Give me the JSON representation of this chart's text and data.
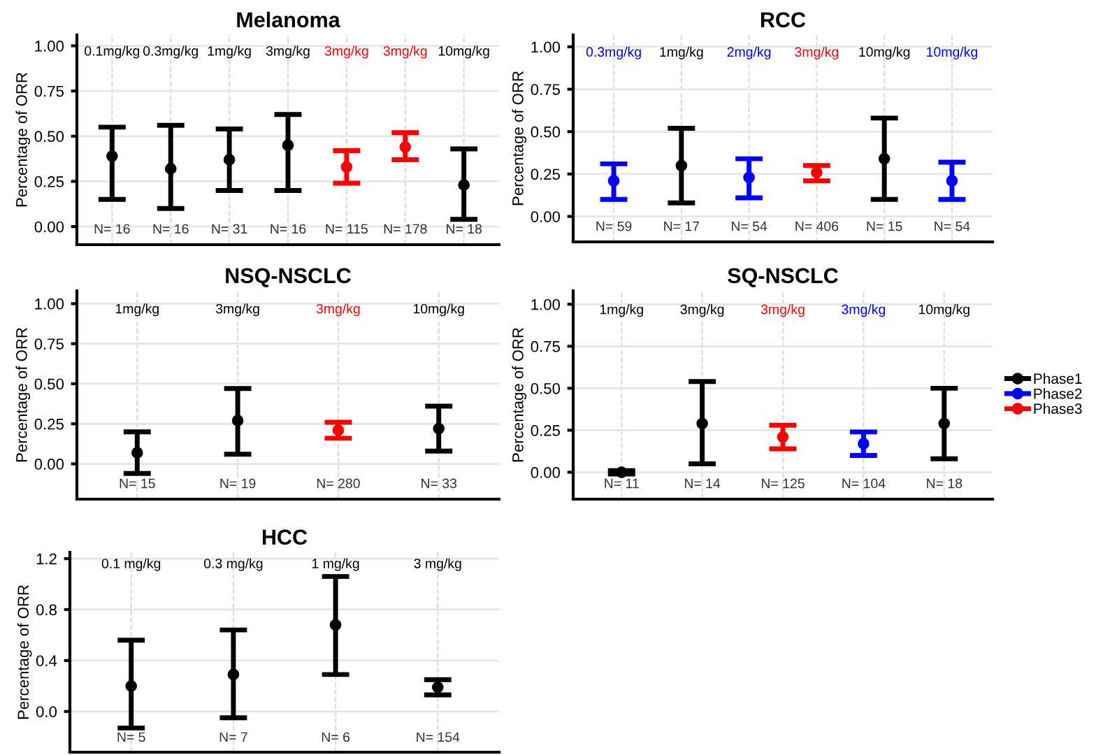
{
  "chart_data": [
    {
      "type": "scatter",
      "title": "Melanoma",
      "ylabel": "Percentage of ORR",
      "categories": [
        "0.1mg/kg",
        "0.3mg/kg",
        "1mg/kg",
        "3mg/kg",
        "3mg/kg",
        "3mg/kg",
        "10mg/kg"
      ],
      "series": [
        {
          "color": "#000000",
          "values": [
            0.39,
            0.32,
            0.37,
            0.45,
            null,
            null,
            0.23
          ],
          "errors": [
            [
              0.15,
              0.55
            ],
            [
              0.1,
              0.56
            ],
            [
              0.2,
              0.54
            ],
            [
              0.2,
              0.62
            ],
            null,
            null,
            [
              0.04,
              0.43
            ]
          ]
        },
        {
          "color": "#ff0000",
          "values": [
            null,
            null,
            null,
            null,
            0.33,
            0.44,
            null
          ],
          "errors": [
            null,
            null,
            null,
            null,
            [
              0.24,
              0.42
            ],
            [
              0.37,
              0.52
            ],
            null
          ]
        }
      ],
      "ylim": [
        -0.1,
        1.06
      ],
      "yticks": [
        {
          "value": 0,
          "label": "0.00"
        },
        {
          "value": 0.25,
          "label": "0.25"
        },
        {
          "value": 0.5,
          "label": "0.50"
        },
        {
          "value": 0.75,
          "label": "0.75"
        },
        {
          "value": 1,
          "label": "1.00"
        }
      ],
      "grid": true,
      "marker": "circle",
      "tick_labels": "y",
      "annotations": [
        "N= 16",
        "N= 16",
        "N= 31",
        "N= 16",
        "N= 115",
        "N= 178",
        "N= 18"
      ]
    },
    {
      "type": "scatter",
      "title": "RCC",
      "ylabel": "Percentage of ORR",
      "categories": [
        "0.3mg/kg",
        "1mg/kg",
        "2mg/kg",
        "3mg/kg",
        "10mg/kg",
        "10mg/kg"
      ],
      "series": [
        {
          "color": "#000000",
          "values": [
            null,
            0.3,
            null,
            null,
            0.34,
            null
          ],
          "errors": [
            null,
            [
              0.08,
              0.52
            ],
            null,
            null,
            [
              0.1,
              0.58
            ],
            null
          ]
        },
        {
          "color": "#0000ff",
          "values": [
            0.21,
            null,
            0.23,
            null,
            null,
            0.21
          ],
          "errors": [
            [
              0.1,
              0.31
            ],
            null,
            [
              0.11,
              0.34
            ],
            null,
            null,
            [
              0.1,
              0.32
            ]
          ]
        },
        {
          "color": "#ff0000",
          "values": [
            null,
            null,
            null,
            0.26,
            null,
            null
          ],
          "errors": [
            null,
            null,
            null,
            [
              0.21,
              0.3
            ],
            null,
            null
          ]
        }
      ],
      "ylim": [
        -0.15,
        1.07
      ],
      "yticks": [
        {
          "value": 0,
          "label": "0.00"
        },
        {
          "value": 0.25,
          "label": "0.25"
        },
        {
          "value": 0.5,
          "label": "0.50"
        },
        {
          "value": 0.75,
          "label": "0.75"
        },
        {
          "value": 1,
          "label": "1.00"
        }
      ],
      "grid": true,
      "marker": "circle",
      "tick_labels": "y",
      "annotations": [
        "N= 59",
        "N= 17",
        "N= 54",
        "N= 406",
        "N= 15",
        "N= 54"
      ]
    },
    {
      "type": "scatter",
      "title": "NSQ-NSCLC",
      "ylabel": "Percentage of ORR",
      "categories": [
        "1mg/kg",
        "3mg/kg",
        "3mg/kg",
        "10mg/kg"
      ],
      "series": [
        {
          "color": "#000000",
          "values": [
            0.07,
            0.27,
            null,
            0.22
          ],
          "errors": [
            [
              -0.06,
              0.2
            ],
            [
              0.06,
              0.47
            ],
            null,
            [
              0.08,
              0.36
            ]
          ]
        },
        {
          "color": "#ff0000",
          "values": [
            null,
            null,
            0.21,
            null
          ],
          "errors": [
            null,
            null,
            [
              0.16,
              0.26
            ],
            null
          ]
        }
      ],
      "ylim": [
        -0.22,
        1.08
      ],
      "yticks": [
        {
          "value": 0,
          "label": "0.00"
        },
        {
          "value": 0.25,
          "label": "0.25"
        },
        {
          "value": 0.5,
          "label": "0.50"
        },
        {
          "value": 0.75,
          "label": "0.75"
        },
        {
          "value": 1,
          "label": "1.00"
        }
      ],
      "grid": true,
      "marker": "circle",
      "tick_labels": "y",
      "annotations": [
        "N= 15",
        "N= 19",
        "N= 280",
        "N= 33"
      ]
    },
    {
      "type": "scatter",
      "title": "SQ-NSCLC",
      "ylabel": "Percentage of ORR",
      "categories": [
        "1mg/kg",
        "3mg/kg",
        "3mg/kg",
        "3mg/kg",
        "10mg/kg"
      ],
      "series": [
        {
          "name": "Phase1",
          "color": "#000000",
          "values": [
            0.0,
            0.29,
            null,
            null,
            0.29
          ],
          "errors": [
            [
              -0.01,
              0.01
            ],
            [
              0.05,
              0.54
            ],
            null,
            null,
            [
              0.08,
              0.5
            ]
          ]
        },
        {
          "name": "Phase2",
          "color": "#0000ff",
          "values": [
            null,
            null,
            null,
            0.17,
            null
          ],
          "errors": [
            null,
            null,
            null,
            [
              0.1,
              0.24
            ],
            null
          ]
        },
        {
          "name": "Phase3",
          "color": "#ff0000",
          "values": [
            null,
            null,
            0.21,
            null,
            null
          ],
          "errors": [
            null,
            null,
            [
              0.14,
              0.28
            ],
            null,
            null
          ]
        }
      ],
      "ylim": [
        -0.16,
        1.08
      ],
      "yticks": [
        {
          "value": 0,
          "label": "0.00"
        },
        {
          "value": 0.25,
          "label": "0.25"
        },
        {
          "value": 0.5,
          "label": "0.50"
        },
        {
          "value": 0.75,
          "label": "0.75"
        },
        {
          "value": 1,
          "label": "1.00"
        }
      ],
      "grid": true,
      "marker": "circle",
      "tick_labels": "y",
      "legend": "right",
      "annotations": [
        "N= 11",
        "N= 14",
        "N= 125",
        "N= 104",
        "N= 18"
      ]
    },
    {
      "type": "scatter",
      "title": "HCC",
      "ylabel": "Percentage of ORR",
      "categories": [
        "0.1 mg/kg",
        "0.3 mg/kg",
        "1 mg/kg",
        "3 mg/kg"
      ],
      "series": [
        {
          "color": "#000000",
          "values": [
            0.2,
            0.29,
            0.68,
            0.19
          ],
          "errors": [
            [
              -0.13,
              0.56
            ],
            [
              -0.05,
              0.64
            ],
            [
              0.29,
              1.06
            ],
            [
              0.13,
              0.25
            ]
          ]
        }
      ],
      "ylim": [
        -0.32,
        1.25
      ],
      "yticks": [
        {
          "value": 0,
          "label": "0.0"
        },
        {
          "value": 0.4,
          "label": "0.4"
        },
        {
          "value": 0.8,
          "label": "0.8"
        },
        {
          "value": 1.2,
          "label": "1.2"
        }
      ],
      "grid": true,
      "marker": "circle",
      "tick_labels": "y",
      "annotations": [
        "N= 5",
        "N= 7",
        "N= 6",
        "N= 154"
      ]
    }
  ]
}
